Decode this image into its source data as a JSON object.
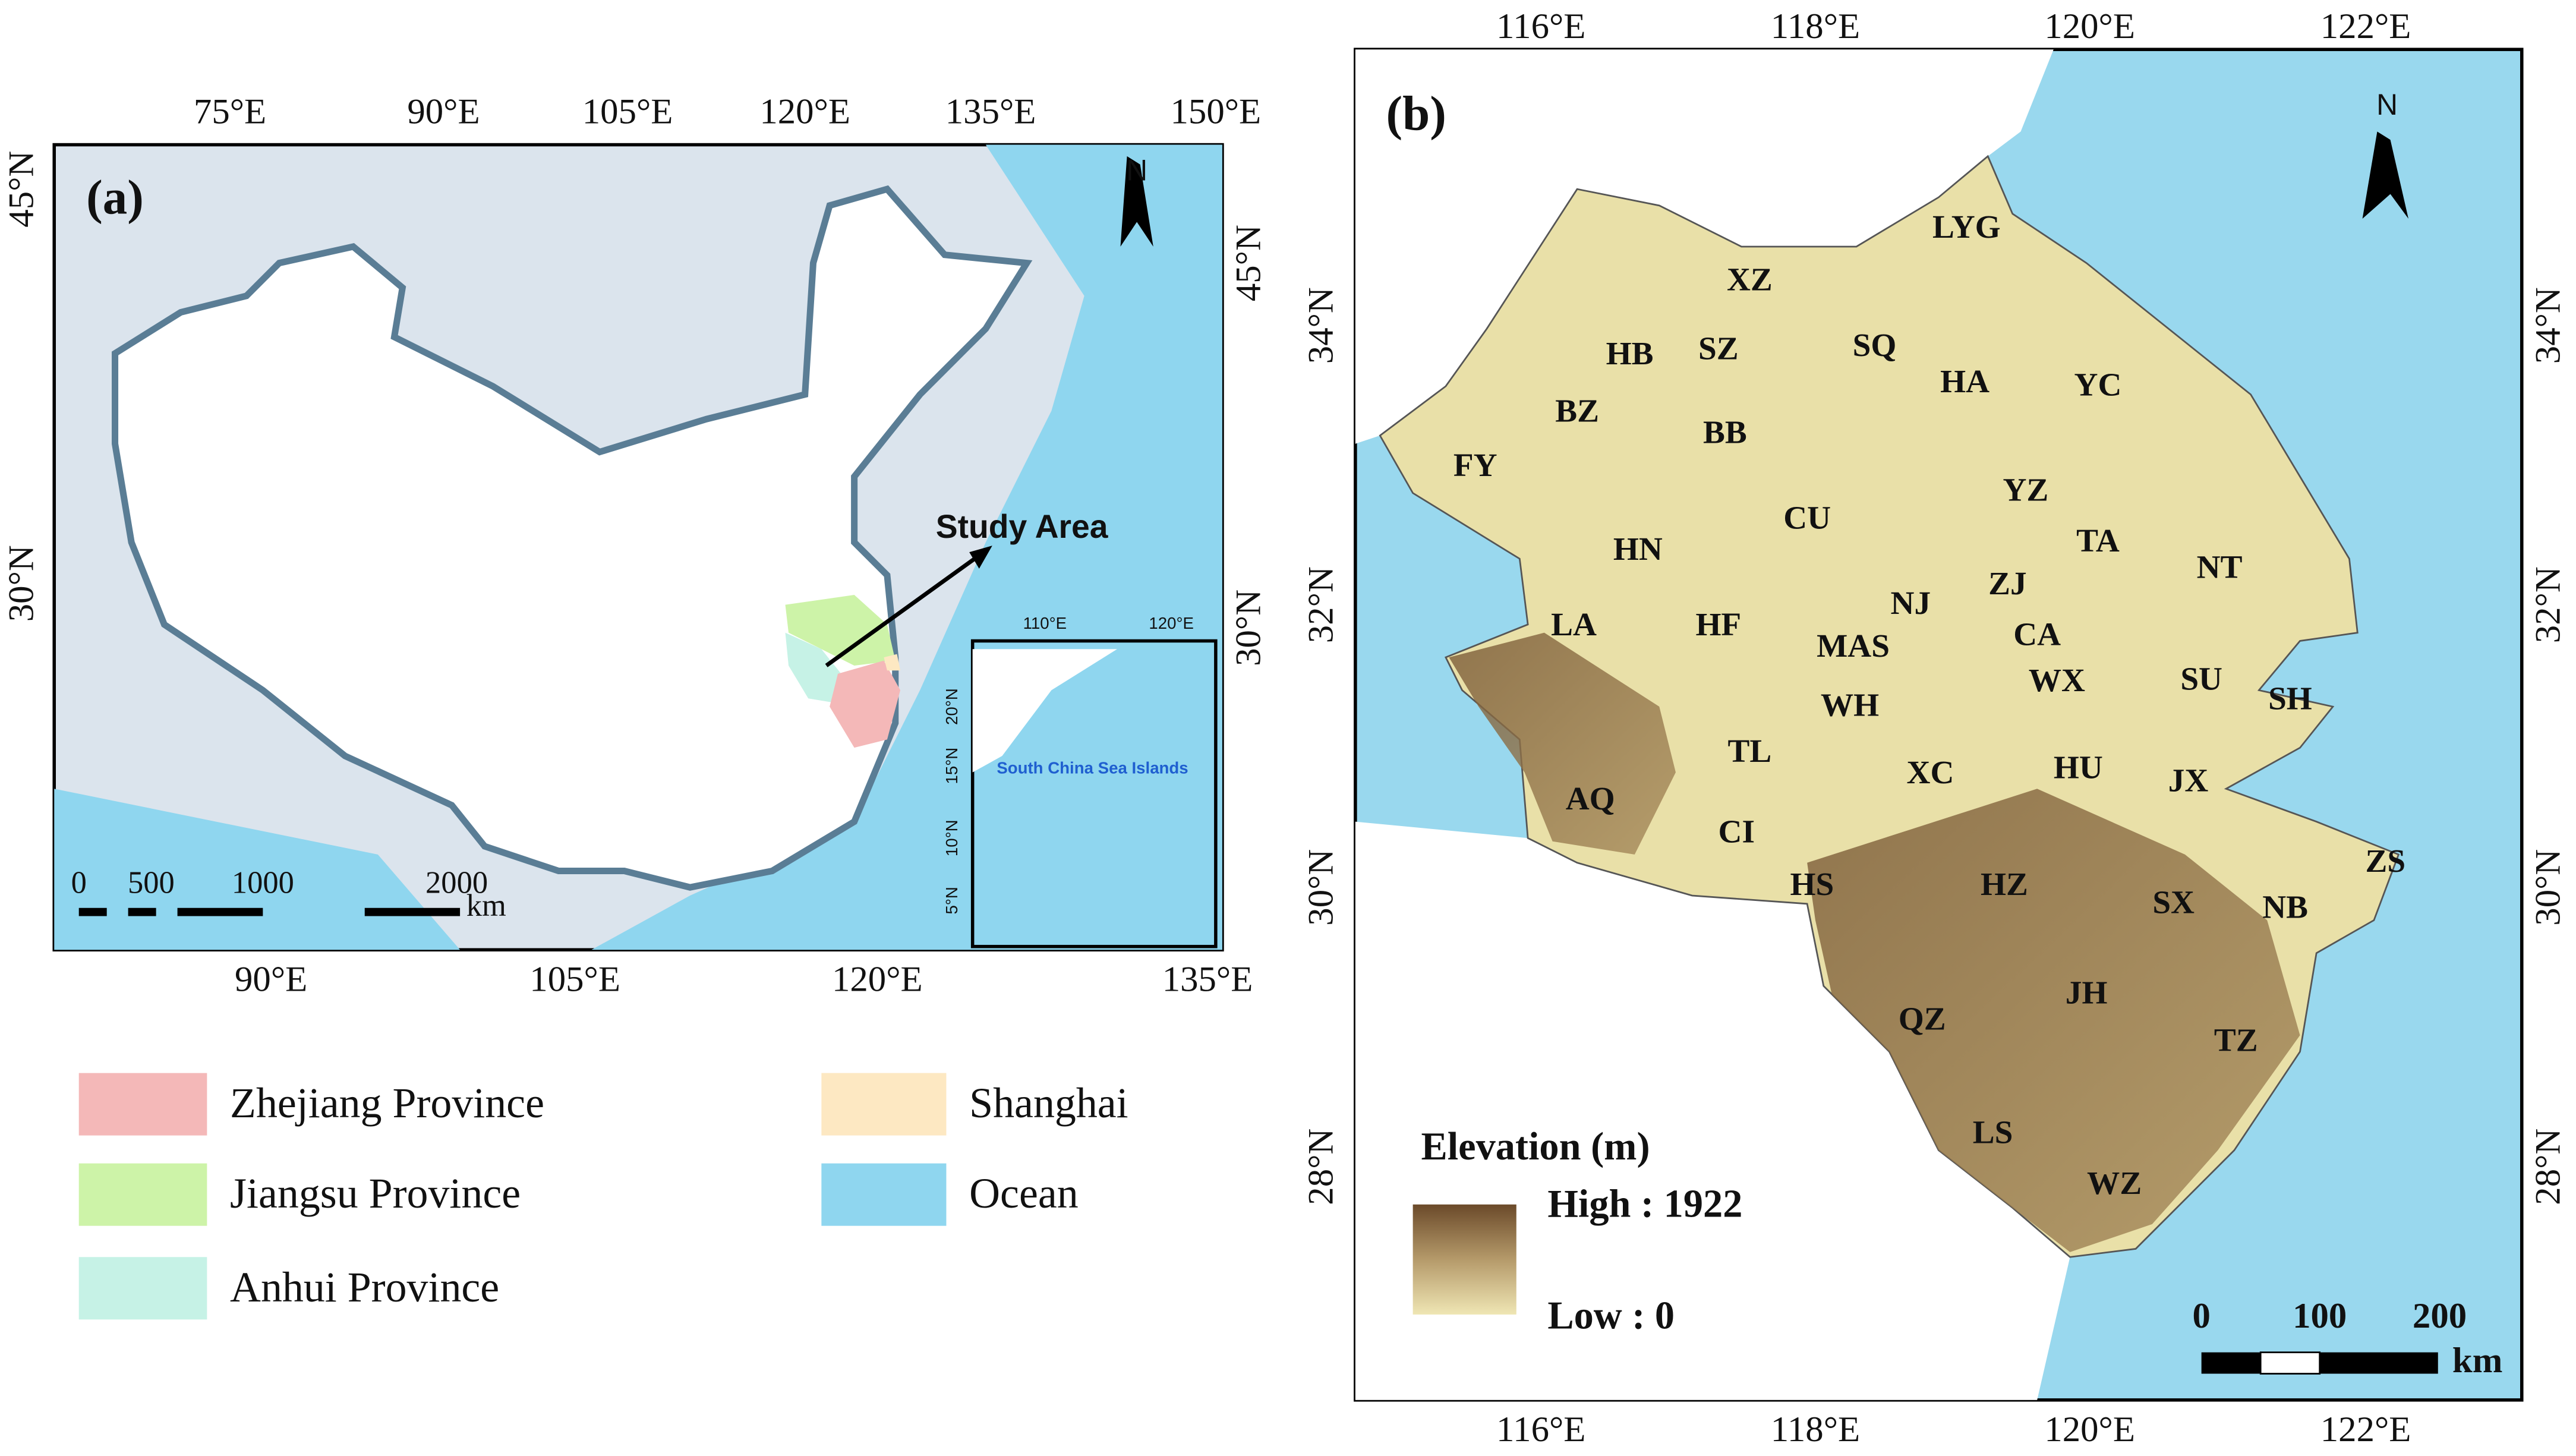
{
  "panel_a": {
    "label": "(a)",
    "top_longitudes": [
      "75°E",
      "90°E",
      "105°E",
      "120°E",
      "135°E",
      "150°E"
    ],
    "bottom_longitudes": [
      "90°E",
      "105°E",
      "120°E",
      "135°E"
    ],
    "left_latitudes": [
      "45°N",
      "30°N"
    ],
    "right_latitudes": [
      "45°N",
      "30°N"
    ],
    "north": "N",
    "annotation": "Study Area",
    "scale_labels": [
      "0",
      "500",
      "1000",
      "2000"
    ],
    "scale_unit": "km",
    "inset": {
      "longitudes": [
        "110°E",
        "120°E"
      ],
      "latitudes": [
        "20°N",
        "15°N",
        "10°N",
        "5°N"
      ],
      "title": "South China Sea Islands"
    }
  },
  "legend": [
    {
      "label": "Zhejiang Province",
      "color": "#f4b8b8"
    },
    {
      "label": "Jiangsu Province",
      "color": "#cdf3a8"
    },
    {
      "label": "Anhui Province",
      "color": "#c6f2e6"
    },
    {
      "label": "Shanghai",
      "color": "#fde8c2"
    },
    {
      "label": "Ocean",
      "color": "#8fd6ef"
    }
  ],
  "panel_b": {
    "label": "(b)",
    "top_longitudes": [
      "116°E",
      "118°E",
      "120°E",
      "122°E"
    ],
    "bottom_longitudes": [
      "116°E",
      "118°E",
      "120°E",
      "122°E"
    ],
    "left_latitudes": [
      "34°N",
      "32°N",
      "30°N",
      "28°N"
    ],
    "right_latitudes": [
      "34°N",
      "32°N",
      "30°N",
      "28°N"
    ],
    "north": "N",
    "cities": [
      "LYG",
      "XZ",
      "HB",
      "SZ",
      "SQ",
      "HA",
      "YC",
      "BZ",
      "BB",
      "FY",
      "YZ",
      "CU",
      "TA",
      "HN",
      "NT",
      "ZJ",
      "NJ",
      "LA",
      "HF",
      "CA",
      "MAS",
      "WX",
      "SU",
      "SH",
      "WH",
      "TL",
      "HU",
      "XC",
      "JX",
      "AQ",
      "CI",
      "ZS",
      "HS",
      "HZ",
      "SX",
      "NB",
      "JH",
      "QZ",
      "TZ",
      "LS",
      "WZ"
    ],
    "elevation": {
      "title": "Elevation (m)",
      "high": "High : 1922",
      "low": "Low : 0"
    },
    "scale_labels": [
      "0",
      "100",
      "200"
    ],
    "scale_unit": "km"
  }
}
